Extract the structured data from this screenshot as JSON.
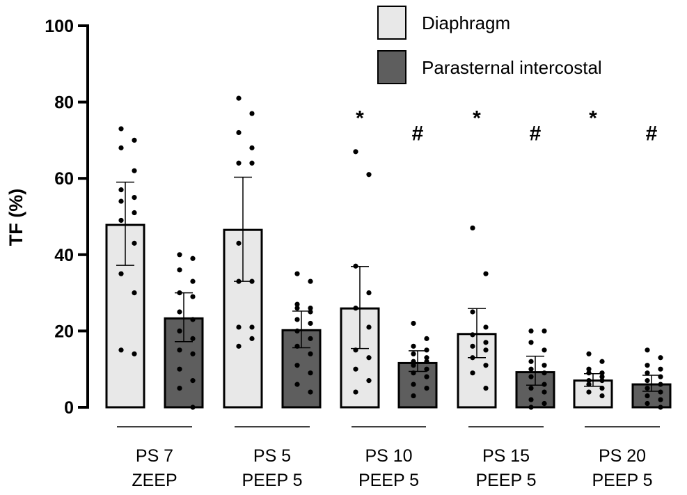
{
  "chart_data": {
    "type": "bar",
    "ylabel": "TF (%)",
    "ylim": [
      0,
      100
    ],
    "yticks": [
      0,
      20,
      40,
      60,
      80,
      100
    ],
    "categories": [
      {
        "line1": "PS 7",
        "line2": "ZEEP"
      },
      {
        "line1": "PS 5",
        "line2": "PEEP 5"
      },
      {
        "line1": "PS 10",
        "line2": "PEEP 5"
      },
      {
        "line1": "PS 15",
        "line2": "PEEP 5"
      },
      {
        "line1": "PS 20",
        "line2": "PEEP 5"
      }
    ],
    "series": [
      {
        "name": "Diaphragm",
        "color": "#e8e8e8",
        "values": [
          47.8,
          46.5,
          25.9,
          19.2,
          7.0
        ],
        "error_low": [
          37.2,
          33.0,
          15.4,
          13.0,
          5.5
        ],
        "error_high": [
          59.0,
          60.3,
          36.9,
          25.9,
          8.8
        ],
        "points": [
          [
            73,
            70,
            68,
            62,
            57,
            55,
            54,
            51,
            49,
            43,
            35,
            30,
            15,
            14
          ],
          [
            81,
            77,
            72,
            68,
            64,
            64,
            43,
            33,
            33,
            21,
            21,
            18,
            16
          ],
          [
            67,
            61,
            37,
            30,
            26,
            21,
            15,
            13,
            10,
            7,
            4
          ],
          [
            47,
            35,
            25,
            21,
            19,
            17,
            16,
            15,
            13,
            11,
            9,
            5
          ],
          [
            14,
            12,
            10,
            9,
            9,
            8,
            7,
            7,
            6,
            5,
            4,
            3
          ]
        ],
        "marks": [
          "",
          "",
          "*",
          "*",
          "*"
        ]
      },
      {
        "name": "Parasternal intercostal",
        "color": "#5e5e5e",
        "values": [
          23.3,
          20.2,
          11.6,
          9.2,
          6.0
        ],
        "error_low": [
          17.2,
          15.6,
          9.4,
          5.8,
          4.2
        ],
        "error_high": [
          30.0,
          25.2,
          14.8,
          13.4,
          8.4
        ],
        "points": [
          [
            40,
            39,
            36,
            33,
            30,
            29,
            25,
            23,
            20,
            18,
            15,
            14,
            10,
            7,
            5,
            0
          ],
          [
            35,
            33,
            27,
            26,
            26,
            25,
            23,
            22,
            20,
            18,
            16,
            14,
            11,
            9,
            6,
            4
          ],
          [
            22,
            18,
            16,
            15,
            14,
            13,
            12,
            12,
            11,
            10,
            9,
            8,
            6,
            5,
            3
          ],
          [
            20,
            20,
            17,
            15,
            12,
            11,
            10,
            9,
            8,
            6,
            5,
            4,
            2,
            1,
            0
          ],
          [
            15,
            13,
            11,
            10,
            9,
            8,
            7,
            6,
            5,
            4,
            3,
            2,
            1,
            0
          ]
        ],
        "marks": [
          "",
          "",
          "#",
          "#",
          "#"
        ]
      }
    ],
    "legend": {
      "position": "top-right"
    }
  }
}
